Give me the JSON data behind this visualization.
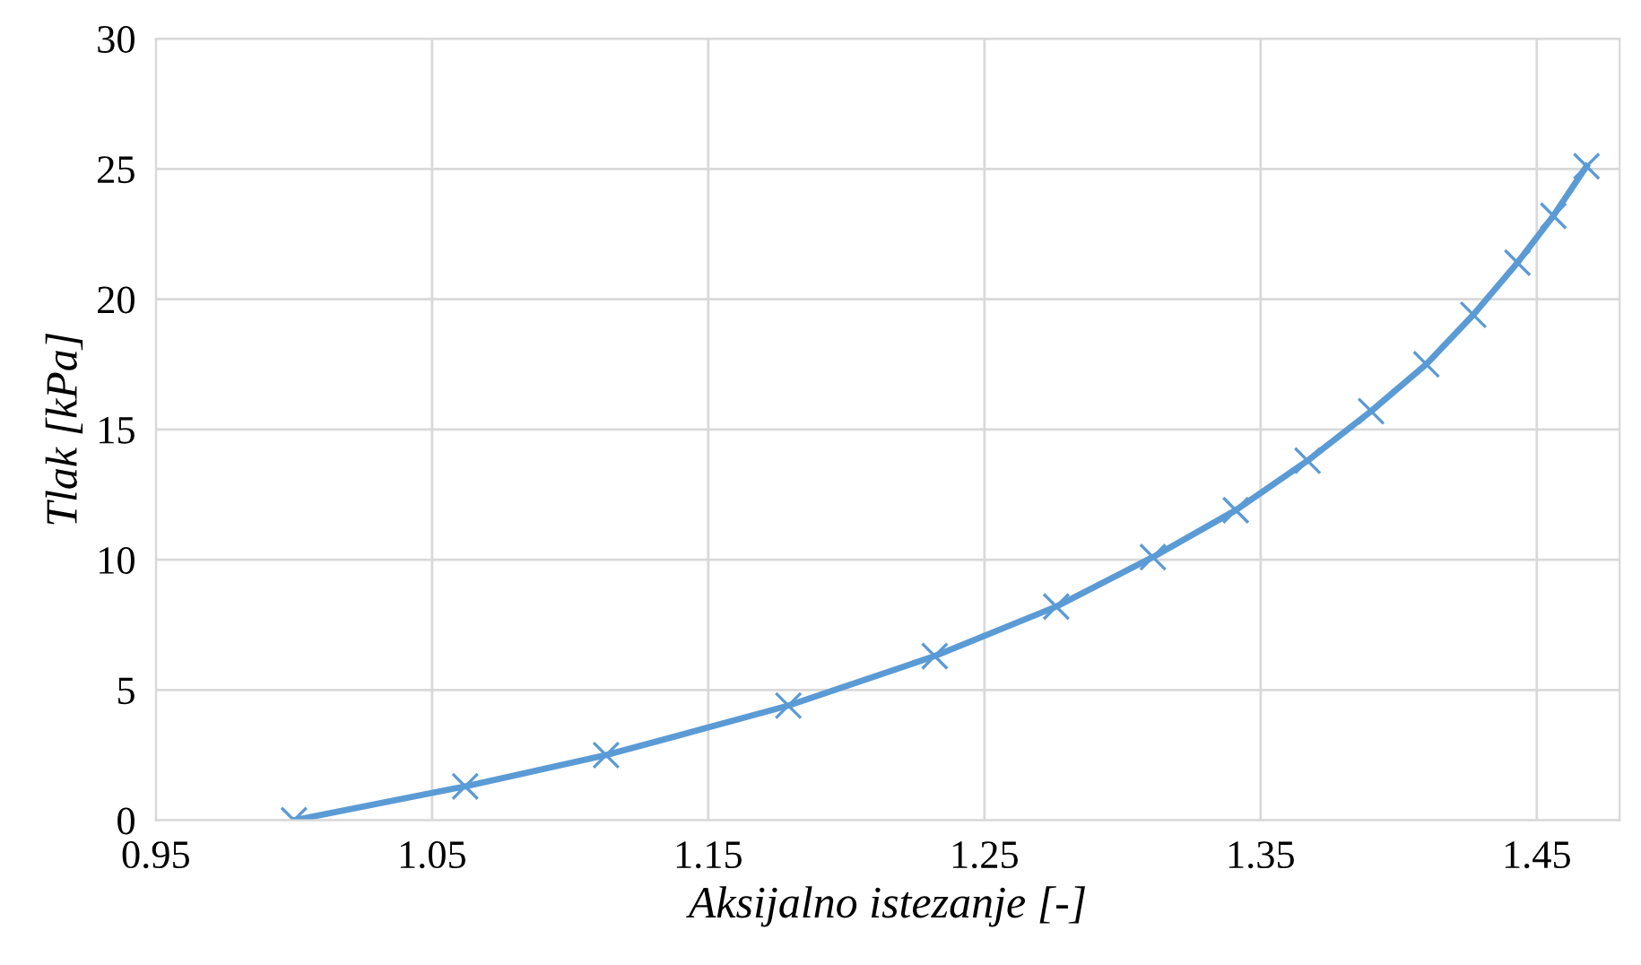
{
  "chart_data": {
    "type": "line",
    "xlabel": "Aksijalno istezanje [-]",
    "ylabel": "Tlak [kPa]",
    "series": [
      {
        "color": "#5b9bd5",
        "x": [
          1.0,
          1.062,
          1.113,
          1.179,
          1.232,
          1.276,
          1.311,
          1.341,
          1.367,
          1.39,
          1.41,
          1.427,
          1.443,
          1.456,
          1.468
        ],
        "values": [
          0,
          1.3,
          2.5,
          4.4,
          6.3,
          8.2,
          10.1,
          11.9,
          13.8,
          15.7,
          17.5,
          19.4,
          21.4,
          23.2,
          25.1
        ]
      }
    ],
    "xlim": [
      0.95,
      1.48
    ],
    "xticks": [
      0.95,
      1.05,
      1.15,
      1.25,
      1.35,
      1.45
    ],
    "ylim": [
      0,
      30
    ],
    "yticks": [
      0,
      5,
      10,
      15,
      20,
      25,
      30
    ],
    "grid": true,
    "marker": "cross",
    "line_style": "solid",
    "legend": false
  }
}
